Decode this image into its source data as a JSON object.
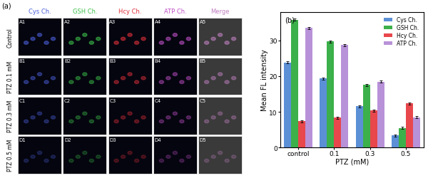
{
  "panel_a": {
    "label": "(a)",
    "columns": [
      {
        "name": "Cys Ch.",
        "color": "#4a5fd8"
      },
      {
        "name": "GSH Ch.",
        "color": "#3cc04a"
      },
      {
        "name": "Hcy Ch.",
        "color": "#e0303a"
      },
      {
        "name": "ATP Ch.",
        "color": "#c050c8"
      },
      {
        "name": "Merge",
        "color": "#c080c0"
      }
    ],
    "rows": [
      {
        "label": "Control",
        "cells": [
          "A1",
          "A2",
          "A3",
          "A4",
          "A5"
        ]
      },
      {
        "label": "PTZ 0.1 mM",
        "cells": [
          "B1",
          "B2",
          "B3",
          "B4",
          "B5"
        ]
      },
      {
        "label": "PTZ 0.3 mM",
        "cells": [
          "C1",
          "C2",
          "C3",
          "C4",
          "C5"
        ]
      },
      {
        "label": "PTZ 0.5 mM",
        "cells": [
          "D1",
          "D2",
          "D3",
          "D4",
          "D5"
        ]
      }
    ]
  },
  "chart_data": {
    "type": "bar",
    "title": "(b)",
    "x_label": "PTZ (mM)",
    "y_label": "Mean FL intensity",
    "categories": [
      "control",
      "0.1",
      "0.3",
      "0.5"
    ],
    "series": [
      {
        "name": "Cys Ch.",
        "color": "#5b8fd6",
        "values": [
          23.8,
          19.3,
          11.6,
          3.4
        ],
        "errors": [
          0.3,
          0.3,
          0.3,
          0.3
        ]
      },
      {
        "name": "GSH Ch.",
        "color": "#3cb04a",
        "values": [
          35.8,
          29.7,
          17.5,
          5.5
        ],
        "errors": [
          0.3,
          0.3,
          0.3,
          0.3
        ]
      },
      {
        "name": "Hcy Ch.",
        "color": "#e8474c",
        "values": [
          7.4,
          8.4,
          10.4,
          12.4
        ],
        "errors": [
          0.3,
          0.3,
          0.3,
          0.3
        ]
      },
      {
        "name": "ATP Ch.",
        "color": "#b892d8",
        "values": [
          33.5,
          28.7,
          18.4,
          8.5
        ],
        "errors": [
          0.3,
          0.3,
          0.3,
          0.3
        ]
      }
    ],
    "ylim": [
      0,
      38
    ],
    "yticks": [
      0,
      10,
      20,
      30
    ],
    "legend": "upper right"
  }
}
